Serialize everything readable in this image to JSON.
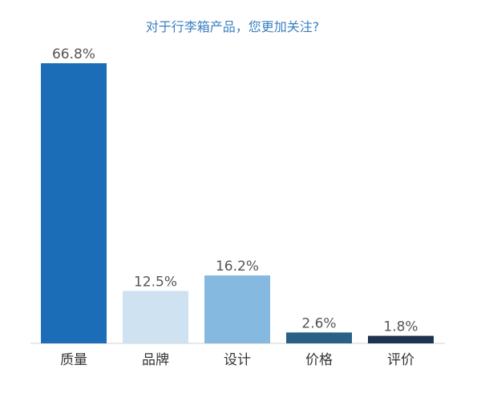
{
  "chart_data": {
    "type": "bar",
    "title": "对于行李箱产品，您更加关注?",
    "categories": [
      "质量",
      "品牌",
      "设计",
      "价格",
      "评价"
    ],
    "values": [
      66.8,
      12.5,
      16.2,
      2.6,
      1.8
    ],
    "value_labels": [
      "66.8%",
      "12.5%",
      "16.2%",
      "2.6%",
      "1.8%"
    ],
    "colors": [
      "#1c6db8",
      "#cfe2f2",
      "#86b9e0",
      "#2a5f86",
      "#1d3350"
    ],
    "xlabel": "",
    "ylabel": "",
    "ylim": [
      0,
      66.8
    ],
    "grid": false,
    "legend": "none"
  }
}
